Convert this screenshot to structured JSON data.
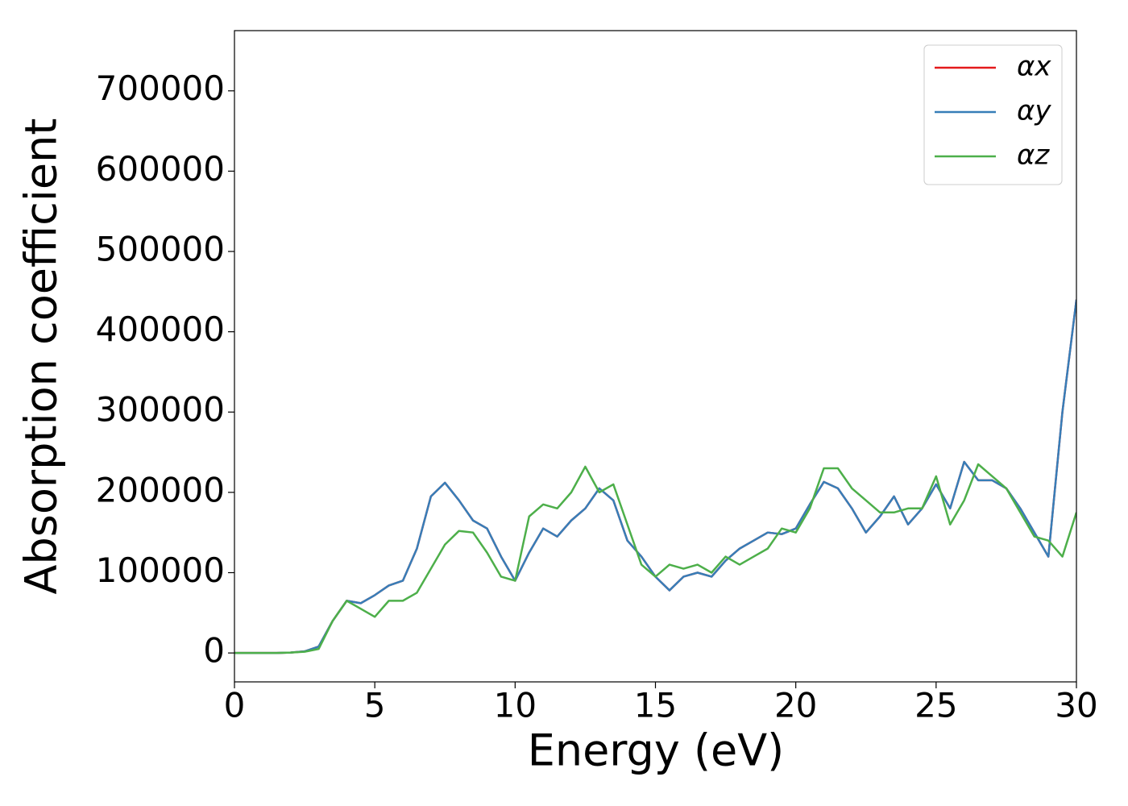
{
  "chart_data": {
    "type": "line",
    "xlabel": "Energy (eV)",
    "ylabel": "Absorption coefficient",
    "x": [
      0,
      0.5,
      1,
      1.5,
      2,
      2.5,
      3,
      3.5,
      4,
      4.5,
      5,
      5.5,
      6,
      6.5,
      7,
      7.5,
      8,
      8.5,
      9,
      9.5,
      10,
      10.5,
      11,
      11.5,
      12,
      12.5,
      13,
      13.5,
      14,
      14.5,
      15,
      15.5,
      16,
      16.5,
      17,
      17.5,
      18,
      18.5,
      19,
      19.5,
      20,
      20.5,
      21,
      21.5,
      22,
      22.5,
      23,
      23.5,
      24,
      24.5,
      25,
      25.5,
      26,
      26.5,
      27,
      27.5,
      28,
      28.5,
      29,
      29.5,
      30
    ],
    "series": [
      {
        "name": "αx",
        "color": "#e41a1c",
        "values": [
          0,
          0,
          0,
          0,
          500,
          2000,
          8000,
          40000,
          65000,
          62000,
          72000,
          84000,
          90000,
          130000,
          195000,
          212000,
          190000,
          165000,
          155000,
          120000,
          90000,
          125000,
          155000,
          145000,
          165000,
          180000,
          205000,
          190000,
          140000,
          120000,
          95000,
          78000,
          95000,
          100000,
          95000,
          115000,
          130000,
          140000,
          150000,
          148000,
          155000,
          185000,
          213000,
          205000,
          180000,
          150000,
          170000,
          195000,
          160000,
          180000,
          210000,
          180000,
          238000,
          215000,
          215000,
          205000,
          180000,
          150000,
          120000,
          300000,
          440000
        ]
      },
      {
        "name": "αy",
        "color": "#377eb8",
        "values": [
          0,
          0,
          0,
          0,
          500,
          2000,
          8000,
          40000,
          65000,
          62000,
          72000,
          84000,
          90000,
          130000,
          195000,
          212000,
          190000,
          165000,
          155000,
          120000,
          90000,
          125000,
          155000,
          145000,
          165000,
          180000,
          205000,
          190000,
          140000,
          120000,
          95000,
          78000,
          95000,
          100000,
          95000,
          115000,
          130000,
          140000,
          150000,
          148000,
          155000,
          185000,
          213000,
          205000,
          180000,
          150000,
          170000,
          195000,
          160000,
          180000,
          210000,
          180000,
          238000,
          215000,
          215000,
          205000,
          180000,
          150000,
          120000,
          300000,
          440000
        ]
      },
      {
        "name": "αz",
        "color": "#4daf4a",
        "values": [
          0,
          0,
          0,
          0,
          500,
          1500,
          5000,
          40000,
          65000,
          55000,
          45000,
          65000,
          65000,
          75000,
          105000,
          135000,
          152000,
          150000,
          125000,
          95000,
          90000,
          170000,
          185000,
          180000,
          200000,
          232000,
          200000,
          210000,
          160000,
          110000,
          95000,
          110000,
          105000,
          110000,
          100000,
          120000,
          110000,
          120000,
          130000,
          155000,
          150000,
          180000,
          230000,
          230000,
          205000,
          190000,
          175000,
          175000,
          180000,
          180000,
          220000,
          160000,
          190000,
          235000,
          220000,
          205000,
          175000,
          145000,
          140000,
          120000,
          175000
        ]
      }
    ],
    "xlim": [
      0,
      30
    ],
    "ylim": [
      -36000,
      775000
    ],
    "xticks": [
      0,
      5,
      10,
      15,
      20,
      25,
      30
    ],
    "yticks": [
      0,
      100000,
      200000,
      300000,
      400000,
      500000,
      600000,
      700000
    ],
    "legend": "upper right"
  }
}
